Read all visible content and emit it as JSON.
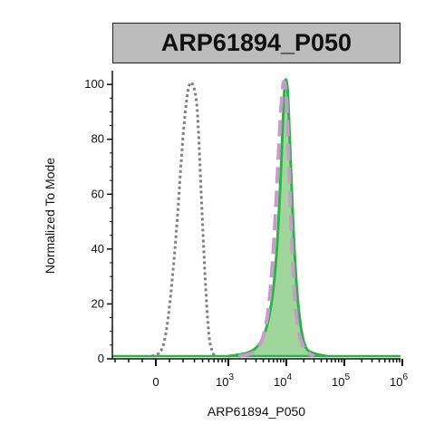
{
  "chart_data": {
    "type": "area",
    "title": "ARP61894_P050",
    "xlabel": "ARP61894_P050",
    "ylabel": "Normalized To Mode",
    "x_scale": "biexponential",
    "ylim": [
      0,
      105
    ],
    "y_ticks": [
      0,
      20,
      40,
      60,
      80,
      100
    ],
    "x_ticks": [
      {
        "value": 0,
        "label": "0",
        "exp": ""
      },
      {
        "value": 1000,
        "label": "10",
        "exp": "3"
      },
      {
        "value": 10000,
        "label": "10",
        "exp": "4"
      },
      {
        "value": 100000,
        "label": "10",
        "exp": "5"
      },
      {
        "value": 1000000,
        "label": "10",
        "exp": "6"
      }
    ],
    "series": [
      {
        "style": "dotted",
        "color": "#808080",
        "x": [
          -30,
          20,
          60,
          100,
          150,
          200,
          240,
          280,
          330,
          380,
          440,
          500,
          560,
          620
        ],
        "y": [
          0,
          1,
          5,
          18,
          45,
          80,
          97,
          99,
          90,
          60,
          28,
          8,
          2,
          0
        ]
      },
      {
        "style": "dashed",
        "color": "#c89cc8",
        "x": [
          1500,
          2500,
          3500,
          4500,
          5500,
          6500,
          7500,
          8200,
          9000,
          10000,
          11000,
          12500,
          15000,
          20000,
          30000
        ],
        "y": [
          0,
          1,
          4,
          12,
          28,
          52,
          78,
          92,
          100,
          94,
          72,
          40,
          14,
          3,
          0
        ]
      },
      {
        "style": "filled",
        "color": "#2db24a",
        "fill": "#8fcf8a",
        "x": [
          1000,
          2000,
          3000,
          4000,
          5000,
          6000,
          7000,
          8000,
          8800,
          9500,
          10500,
          11500,
          13000,
          15000,
          18000,
          22000,
          30000,
          50000
        ],
        "y": [
          0,
          1,
          3,
          7,
          14,
          25,
          42,
          66,
          87,
          100,
          97,
          78,
          50,
          26,
          10,
          3,
          1,
          0
        ]
      }
    ]
  }
}
